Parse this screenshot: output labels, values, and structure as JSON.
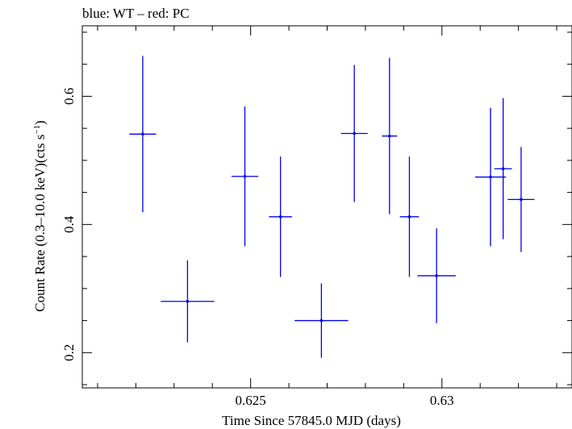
{
  "chart_data": {
    "type": "scatter",
    "title": "blue: WT – red: PC",
    "xlabel": "Time Since 57845.0 MJD (days)",
    "ylabel": "Count Rate (0.3–10.0 keV)(cts s⁻¹)",
    "xlim": [
      0.6206,
      0.6334
    ],
    "ylim": [
      0.145,
      0.71
    ],
    "x_ticks": [
      0.625,
      0.63
    ],
    "x_tick_labels": [
      "0.625",
      "0.63"
    ],
    "y_ticks": [
      0.2,
      0.4,
      0.6
    ],
    "y_tick_labels": [
      "0.2",
      "0.4",
      "0.6"
    ],
    "grid": false,
    "series": [
      {
        "color": "#0000ee",
        "points": [
          {
            "x": 0.62218,
            "xerr": 0.00035,
            "y": 0.541,
            "yerr": 0.122
          },
          {
            "x": 0.62485,
            "xerr": 0.00035,
            "y": 0.475,
            "yerr": 0.109
          },
          {
            "x": 0.62578,
            "xerr": 0.0003,
            "y": 0.412,
            "yerr": 0.094
          },
          {
            "x": 0.62771,
            "xerr": 0.00035,
            "y": 0.542,
            "yerr": 0.107
          },
          {
            "x": 0.62863,
            "xerr": 0.0002,
            "y": 0.538,
            "yerr": 0.122
          },
          {
            "x": 0.62986,
            "xerr": 0.0005,
            "y": 0.32,
            "yerr": 0.074
          },
          {
            "x": 0.63127,
            "xerr": 0.0004,
            "y": 0.474,
            "yerr": 0.108
          },
          {
            "x": 0.6316,
            "xerr": 0.00023,
            "y": 0.487,
            "yerr": 0.11
          },
          {
            "x": 0.63207,
            "xerr": 0.00035,
            "y": 0.439,
            "yerr": 0.082
          },
          {
            "x": 0.62335,
            "xerr": 0.0007,
            "y": 0.28,
            "yerr": 0.064
          },
          {
            "x": 0.62685,
            "xerr": 0.0007,
            "y": 0.25,
            "yerr": 0.058
          },
          {
            "x": 0.62915,
            "xerr": 0.00025,
            "y": 0.412,
            "yerr": 0.094
          }
        ]
      }
    ]
  }
}
